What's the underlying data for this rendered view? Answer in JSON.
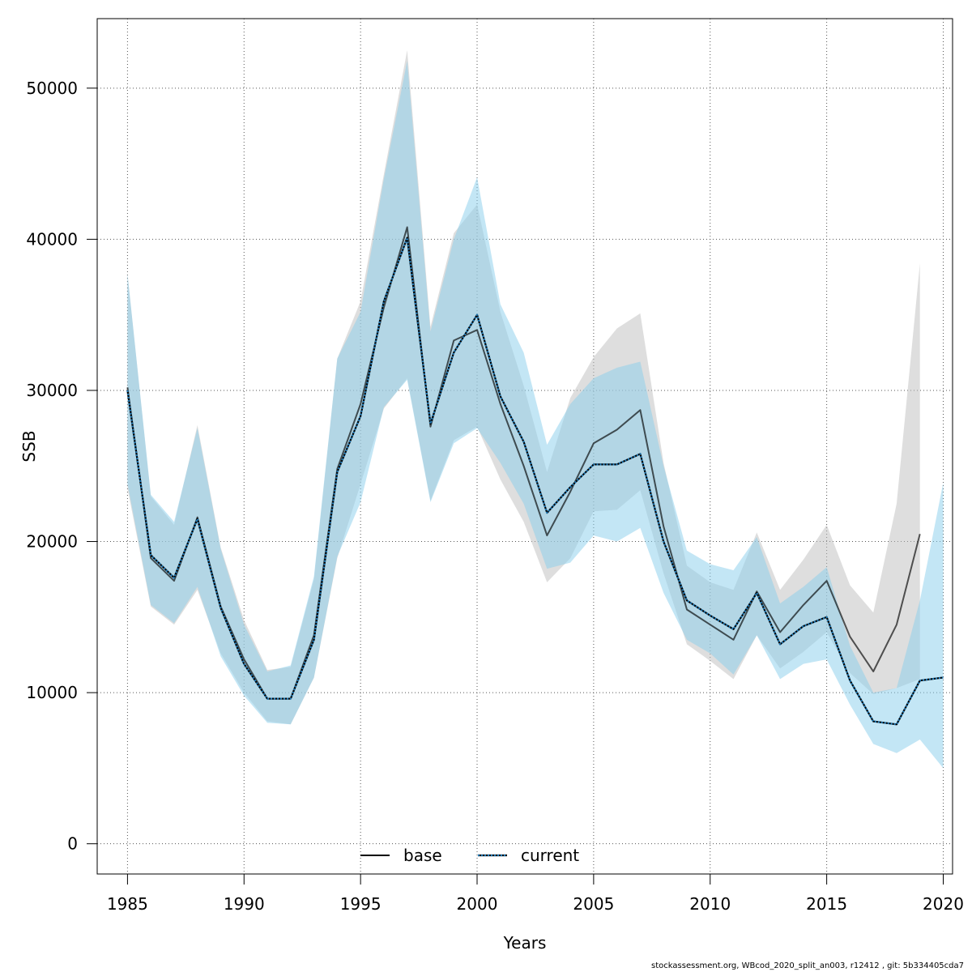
{
  "chart_data": {
    "type": "line",
    "title": "",
    "xlabel": "Years",
    "ylabel": "SSB",
    "xlim": [
      1983.7,
      2020.4
    ],
    "ylim": [
      -2000,
      54600
    ],
    "xticks": [
      1985,
      1990,
      1995,
      2000,
      2005,
      2010,
      2015,
      2020
    ],
    "yticks": [
      0,
      10000,
      20000,
      30000,
      40000,
      50000
    ],
    "grid": true,
    "legend_position": "bottom-center",
    "series": [
      {
        "name": "base",
        "line_color": "#000000",
        "line_style": "solid",
        "band_color": "#bebebe",
        "x": [
          1985,
          1986,
          1987,
          1988,
          1989,
          1990,
          1991,
          1992,
          1993,
          1994,
          1995,
          1996,
          1997,
          1998,
          1999,
          2000,
          2001,
          2002,
          2003,
          2004,
          2005,
          2006,
          2007,
          2008,
          2009,
          2010,
          2011,
          2012,
          2013,
          2014,
          2015,
          2016,
          2017,
          2018,
          2019
        ],
        "values": [
          30200,
          18900,
          17400,
          21600,
          15700,
          12200,
          9600,
          9600,
          13800,
          24800,
          29100,
          35500,
          40800,
          27600,
          33300,
          34000,
          29100,
          25000,
          20400,
          23300,
          26500,
          27400,
          28700,
          21000,
          15500,
          14500,
          13500,
          16700,
          14000,
          15800,
          17400,
          13700,
          11400,
          14500,
          20500
        ],
        "lower": [
          23500,
          15700,
          14500,
          16800,
          12600,
          10000,
          8100,
          7900,
          11000,
          18900,
          23800,
          28800,
          30800,
          22700,
          26700,
          27600,
          24100,
          21300,
          17300,
          18900,
          22000,
          22100,
          23400,
          17900,
          13200,
          12100,
          10900,
          13800,
          11600,
          12700,
          14000,
          11300,
          9900,
          10300,
          10900
        ],
        "upper": [
          37700,
          23000,
          21100,
          27700,
          19600,
          14800,
          11500,
          11700,
          17500,
          32100,
          35900,
          44300,
          52500,
          34200,
          40400,
          42300,
          35200,
          30300,
          24600,
          29500,
          32200,
          34100,
          35100,
          25200,
          18400,
          17300,
          16800,
          20600,
          16800,
          18800,
          21100,
          17100,
          15300,
          22500,
          38400
        ]
      },
      {
        "name": "current",
        "line_color": "#1f78b4",
        "line_style": "dotted",
        "band_color": "#87ceeb",
        "x": [
          1985,
          1986,
          1987,
          1988,
          1989,
          1990,
          1991,
          1992,
          1993,
          1994,
          1995,
          1996,
          1997,
          1998,
          1999,
          2000,
          2001,
          2002,
          2003,
          2004,
          2005,
          2006,
          2007,
          2008,
          2009,
          2010,
          2011,
          2012,
          2013,
          2014,
          2015,
          2016,
          2017,
          2018,
          2019,
          2020
        ],
        "values": [
          30000,
          19100,
          17600,
          21500,
          15600,
          11900,
          9600,
          9600,
          13500,
          24600,
          28300,
          35900,
          40100,
          27800,
          32500,
          35000,
          29600,
          26600,
          21900,
          23600,
          25100,
          25100,
          25800,
          20000,
          16100,
          15100,
          14200,
          16600,
          13200,
          14400,
          15000,
          10800,
          8100,
          7900,
          10800,
          11000
        ],
        "lower": [
          23800,
          15800,
          14600,
          17000,
          12400,
          9800,
          8000,
          7900,
          11000,
          19000,
          22600,
          28900,
          30700,
          22600,
          26500,
          27500,
          25200,
          22500,
          18200,
          18600,
          20400,
          20000,
          20900,
          16600,
          13500,
          12600,
          11200,
          13800,
          10900,
          11900,
          12200,
          9200,
          6600,
          6000,
          6900,
          5000
        ],
        "upper": [
          37700,
          23100,
          21300,
          27500,
          19500,
          14500,
          11400,
          11800,
          17700,
          32100,
          35200,
          44000,
          51800,
          33900,
          40000,
          44100,
          35700,
          32500,
          26400,
          29100,
          30800,
          31500,
          31900,
          25000,
          19400,
          18500,
          18100,
          20300,
          15900,
          17000,
          18300,
          13100,
          10000,
          10300,
          16100,
          23900
        ]
      }
    ]
  },
  "footer": "stockassessment.org, WBcod_2020_split_an003, r12412 , git: 5b334405cda7"
}
